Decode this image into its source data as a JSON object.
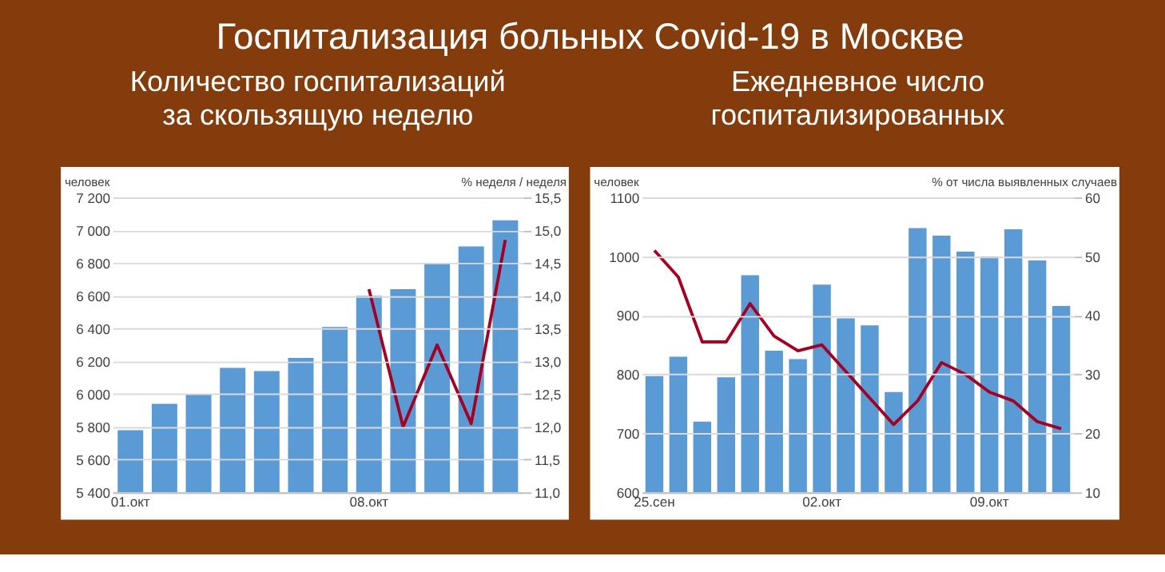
{
  "chart_data": [
    {
      "type": "bar",
      "title": "Госпитализация больных Covid-19 в Москве",
      "subtitle": "Количество госпитализаций за скользящую неделю",
      "ylabel": "человек",
      "y2label": "% неделя / неделя",
      "categories": [
        "01.окт",
        null,
        null,
        null,
        null,
        null,
        null,
        "08.окт",
        null,
        null,
        null,
        null
      ],
      "ylim": [
        5400,
        7200
      ],
      "yticks": [
        {
          "value": 5400,
          "label": "5 400"
        },
        {
          "value": 5600,
          "label": "5 600"
        },
        {
          "value": 5800,
          "label": "5 800"
        },
        {
          "value": 6000,
          "label": "6 000"
        },
        {
          "value": 6200,
          "label": "6 200"
        },
        {
          "value": 6400,
          "label": "6 400"
        },
        {
          "value": 6600,
          "label": "6 600"
        },
        {
          "value": 6800,
          "label": "6 800"
        },
        {
          "value": 7000,
          "label": "7 000"
        },
        {
          "value": 7200,
          "label": "7 200"
        }
      ],
      "y2lim": [
        11,
        15.5
      ],
      "y2ticks": [
        {
          "value": 11,
          "label": "11,0"
        },
        {
          "value": 11.5,
          "label": "11,5"
        },
        {
          "value": 12,
          "label": "12,0"
        },
        {
          "value": 12.5,
          "label": "12,5"
        },
        {
          "value": 13,
          "label": "13,0"
        },
        {
          "value": 13.5,
          "label": "13,5"
        },
        {
          "value": 14,
          "label": "14,0"
        },
        {
          "value": 14.5,
          "label": "14,5"
        },
        {
          "value": 15,
          "label": "15,0"
        },
        {
          "value": 15.5,
          "label": "15,5"
        }
      ],
      "grid": "y",
      "marker": "none",
      "series": [
        {
          "type": "bar",
          "color": "#5b9bd5",
          "values": [
            5780,
            5940,
            6000,
            6160,
            6140,
            6220,
            6410,
            6600,
            6640,
            6800,
            6900,
            7060
          ]
        },
        {
          "type": "line",
          "axis": "y2",
          "color": "#a50021",
          "values": [
            null,
            null,
            null,
            null,
            null,
            null,
            null,
            14.1,
            12.0,
            13.25,
            12.05,
            14.85
          ]
        }
      ]
    },
    {
      "type": "bar",
      "subtitle": "Ежедневное число госпитализированных",
      "ylabel": "человек",
      "y2label": "% от числа выявленных случаев",
      "categories": [
        "25.сен",
        null,
        null,
        null,
        null,
        null,
        null,
        "02.окт",
        null,
        null,
        null,
        null,
        null,
        null,
        "09.окт",
        null,
        null,
        null
      ],
      "ylim": [
        600,
        1100
      ],
      "yticks": [
        600,
        700,
        800,
        900,
        1000,
        1100
      ],
      "y2lim": [
        10,
        60
      ],
      "y2ticks": [
        10,
        20,
        30,
        40,
        50,
        60
      ],
      "grid": "y",
      "marker": "none",
      "series": [
        {
          "type": "bar",
          "color": "#5b9bd5",
          "values": [
            797,
            830,
            720,
            795,
            968,
            840,
            826,
            952,
            895,
            883,
            770,
            1048,
            1035,
            1008,
            1000,
            1046,
            993,
            916
          ]
        },
        {
          "type": "line",
          "axis": "y2",
          "color": "#a50021",
          "values": [
            51,
            46.5,
            35.5,
            35.5,
            42,
            36.5,
            34,
            35,
            30.5,
            26,
            21.5,
            25.5,
            32,
            30,
            27,
            25.5,
            22,
            20.8
          ]
        }
      ]
    }
  ]
}
